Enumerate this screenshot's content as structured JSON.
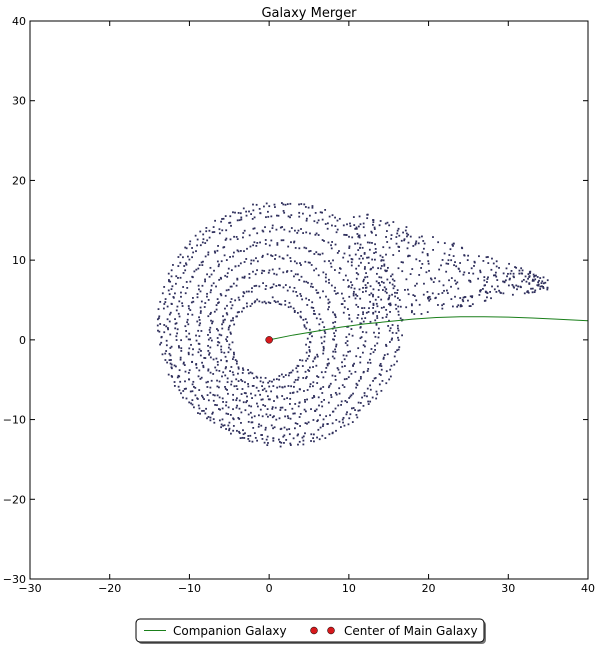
{
  "chart_data": {
    "type": "scatter",
    "title": "Galaxy Merger",
    "xlabel": "",
    "ylabel": "",
    "xlim": [
      -30,
      40
    ],
    "ylim": [
      -30,
      40
    ],
    "x_ticks": [
      -30,
      -20,
      -10,
      0,
      10,
      20,
      30,
      40
    ],
    "y_ticks": [
      -30,
      -20,
      -10,
      0,
      10,
      20,
      30,
      40
    ],
    "x_tick_labels": [
      "−30",
      "−20",
      "−10",
      "0",
      "10",
      "20",
      "30",
      "40"
    ],
    "y_tick_labels": [
      "−30",
      "−20",
      "−10",
      "0",
      "10",
      "20",
      "30",
      "40"
    ],
    "grid": false,
    "legend_placement": "bottom-center-outside",
    "series": [
      {
        "name": "Companion Galaxy",
        "kind": "line",
        "color": "#1a7f1a",
        "x": [
          0,
          3,
          6,
          9,
          12,
          15,
          18,
          21,
          24,
          27,
          30,
          33,
          36,
          40
        ],
        "y": [
          0,
          0.6,
          1.1,
          1.6,
          2.0,
          2.3,
          2.6,
          2.8,
          2.9,
          2.9,
          2.85,
          2.75,
          2.6,
          2.4
        ]
      },
      {
        "name": "Center of Main Galaxy",
        "kind": "marker",
        "color": "#d7191c",
        "x": [
          0
        ],
        "y": [
          0
        ]
      },
      {
        "kind": "star-particles",
        "color": "#2f2f5c",
        "rings": [
          {
            "radius": 5,
            "count": 120,
            "center": [
              0,
              0
            ]
          },
          {
            "radius": 6.5,
            "count": 140,
            "center": [
              0.2,
              0.3
            ]
          },
          {
            "radius": 8,
            "count": 160,
            "center": [
              0.4,
              0.6
            ]
          },
          {
            "radius": 9.5,
            "count": 180,
            "center": [
              0.6,
              0.9
            ]
          },
          {
            "radius": 11,
            "count": 200,
            "center": [
              0.8,
              1.2
            ]
          },
          {
            "radius": 12.5,
            "count": 220,
            "center": [
              1.0,
              1.5
            ]
          },
          {
            "radius": 14,
            "count": 240,
            "center": [
              1.2,
              1.8
            ]
          },
          {
            "radius": 15,
            "count": 240,
            "center": [
              1.4,
              2.0
            ]
          }
        ],
        "tidal_tail_extent_x": [
          10,
          35
        ],
        "tidal_tail_extent_y": [
          3,
          19
        ]
      }
    ]
  },
  "legend": {
    "items": [
      {
        "label": "Companion Galaxy",
        "style": "line",
        "color": "#1a7f1a"
      },
      {
        "label": "Center of Main Galaxy",
        "style": "marker",
        "color": "#d7191c"
      }
    ]
  }
}
